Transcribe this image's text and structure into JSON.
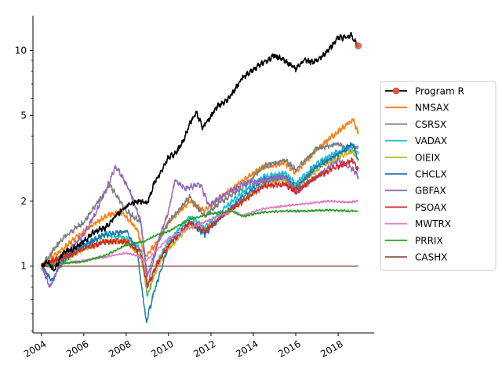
{
  "chart_data": {
    "type": "line",
    "title": "",
    "xlabel": "",
    "ylabel": "",
    "yscale": "log",
    "xlim": [
      2003.6,
      2019.7
    ],
    "ylim": [
      0.49,
      14.5
    ],
    "x_ticks": [
      "2004",
      "2006",
      "2008",
      "2010",
      "2012",
      "2014",
      "2016",
      "2018"
    ],
    "y_ticks": [
      "1",
      "2",
      "5",
      "10"
    ],
    "grid": false,
    "legend_position": "center-right",
    "end_marker": {
      "series": "Program R",
      "x": 2018.95,
      "y": 10.5,
      "color": "#e8574a"
    },
    "series": [
      {
        "name": "Program R",
        "color": "#000000",
        "marker": "circle",
        "x": [
          2004.0,
          2004.3,
          2004.6,
          2005.0,
          2005.5,
          2006.0,
          2006.5,
          2007.0,
          2007.5,
          2008.0,
          2008.5,
          2008.7,
          2009.0,
          2009.3,
          2009.7,
          2010.0,
          2010.3,
          2010.7,
          2011.0,
          2011.3,
          2011.6,
          2011.9,
          2012.3,
          2012.7,
          2013.0,
          2013.5,
          2014.0,
          2014.5,
          2015.0,
          2015.5,
          2016.0,
          2016.4,
          2016.8,
          2017.2,
          2017.6,
          2018.0,
          2018.3,
          2018.6,
          2018.95
        ],
        "y": [
          1.0,
          1.05,
          0.95,
          1.15,
          1.2,
          1.3,
          1.45,
          1.5,
          1.7,
          1.9,
          2.0,
          2.0,
          1.95,
          2.4,
          2.8,
          3.2,
          3.3,
          3.8,
          4.6,
          5.2,
          4.4,
          4.8,
          5.5,
          5.8,
          6.3,
          7.5,
          8.2,
          8.8,
          9.5,
          8.9,
          8.2,
          9.0,
          8.8,
          9.3,
          10.2,
          11.5,
          11.4,
          11.8,
          10.5
        ]
      },
      {
        "name": "NMSAX",
        "color": "#ff7f0e",
        "x": [
          2004.0,
          2005.0,
          2006.0,
          2007.0,
          2007.7,
          2008.5,
          2008.9,
          2009.5,
          2010.0,
          2011.0,
          2011.7,
          2012.5,
          2013.5,
          2014.5,
          2015.5,
          2016.0,
          2017.0,
          2018.0,
          2018.7,
          2018.95
        ],
        "y": [
          1.0,
          1.2,
          1.45,
          1.7,
          1.8,
          1.5,
          1.1,
          1.3,
          1.6,
          2.0,
          1.8,
          2.1,
          2.5,
          2.9,
          3.0,
          2.7,
          3.5,
          4.2,
          4.8,
          4.1
        ]
      },
      {
        "name": "CSRSX",
        "color": "#7f7f7f",
        "x": [
          2004.0,
          2005.0,
          2006.0,
          2007.0,
          2007.2,
          2008.0,
          2008.7,
          2009.0,
          2009.5,
          2010.0,
          2011.0,
          2011.7,
          2012.5,
          2013.5,
          2014.5,
          2015.5,
          2016.0,
          2017.0,
          2018.0,
          2018.7,
          2018.95
        ],
        "y": [
          1.0,
          1.35,
          1.6,
          2.2,
          2.4,
          1.8,
          1.6,
          0.8,
          1.3,
          1.6,
          2.1,
          1.7,
          2.0,
          2.3,
          2.9,
          3.1,
          2.8,
          3.5,
          3.7,
          3.4,
          3.6
        ]
      },
      {
        "name": "VADAX",
        "color": "#17becf",
        "x": [
          2004.0,
          2005.0,
          2006.0,
          2007.0,
          2008.0,
          2008.7,
          2009.0,
          2009.5,
          2010.0,
          2011.0,
          2011.7,
          2012.5,
          2013.5,
          2014.5,
          2015.5,
          2016.0,
          2017.0,
          2018.0,
          2018.7,
          2018.95
        ],
        "y": [
          1.0,
          1.1,
          1.25,
          1.4,
          1.35,
          1.2,
          0.72,
          1.05,
          1.3,
          1.7,
          1.5,
          1.8,
          2.2,
          2.6,
          2.7,
          2.4,
          3.0,
          3.4,
          3.6,
          3.3
        ]
      },
      {
        "name": "OIEIX",
        "color": "#bcbd22",
        "x": [
          2004.0,
          2005.0,
          2006.0,
          2007.0,
          2008.0,
          2008.7,
          2009.0,
          2009.5,
          2010.0,
          2011.0,
          2011.7,
          2012.5,
          2013.5,
          2014.5,
          2015.5,
          2016.0,
          2017.0,
          2018.0,
          2018.7,
          2018.95
        ],
        "y": [
          1.0,
          1.05,
          1.2,
          1.3,
          1.3,
          1.1,
          0.75,
          1.0,
          1.2,
          1.55,
          1.45,
          1.7,
          2.0,
          2.4,
          2.5,
          2.3,
          2.8,
          3.2,
          3.4,
          3.1
        ]
      },
      {
        "name": "CHCLX",
        "color": "#1f77b4",
        "x": [
          2004.0,
          2004.5,
          2005.0,
          2006.0,
          2007.0,
          2008.0,
          2008.5,
          2008.95,
          2009.3,
          2009.7,
          2010.0,
          2011.0,
          2011.7,
          2012.5,
          2013.5,
          2014.5,
          2015.5,
          2016.0,
          2017.0,
          2018.0,
          2018.7,
          2018.95
        ],
        "y": [
          1.0,
          0.85,
          1.05,
          1.25,
          1.4,
          1.45,
          1.2,
          0.55,
          0.75,
          1.0,
          1.25,
          1.6,
          1.4,
          1.7,
          2.1,
          2.5,
          2.6,
          2.3,
          2.9,
          3.3,
          3.7,
          3.1
        ]
      },
      {
        "name": "GBFAX",
        "color": "#9467bd",
        "x": [
          2004.0,
          2004.4,
          2005.0,
          2006.0,
          2006.6,
          2007.0,
          2007.5,
          2007.8,
          2008.2,
          2008.7,
          2009.0,
          2009.5,
          2010.0,
          2010.3,
          2010.8,
          2011.5,
          2011.9,
          2012.5,
          2013.5,
          2014.5,
          2015.5,
          2016.0,
          2017.0,
          2018.0,
          2018.7,
          2018.95
        ],
        "y": [
          1.0,
          0.8,
          1.1,
          1.4,
          1.8,
          2.2,
          2.9,
          2.6,
          2.2,
          1.6,
          0.9,
          1.3,
          1.8,
          2.5,
          2.3,
          2.4,
          1.9,
          2.1,
          2.4,
          2.5,
          2.6,
          2.2,
          2.6,
          3.1,
          2.8,
          2.6
        ]
      },
      {
        "name": "PSOAX",
        "color": "#d62728",
        "x": [
          2004.0,
          2005.0,
          2006.0,
          2007.0,
          2008.0,
          2008.7,
          2009.0,
          2009.5,
          2010.0,
          2011.0,
          2011.7,
          2012.5,
          2013.5,
          2014.5,
          2015.5,
          2016.0,
          2017.0,
          2018.0,
          2018.7,
          2018.95
        ],
        "y": [
          1.0,
          1.1,
          1.2,
          1.3,
          1.3,
          1.15,
          0.8,
          1.05,
          1.25,
          1.6,
          1.45,
          1.7,
          2.0,
          2.35,
          2.4,
          2.2,
          2.6,
          2.9,
          3.1,
          2.8
        ]
      },
      {
        "name": "MWTRX",
        "color": "#e377c2",
        "x": [
          2004.0,
          2005.0,
          2006.0,
          2007.0,
          2008.0,
          2008.5,
          2008.9,
          2009.5,
          2010.0,
          2011.0,
          2012.0,
          2013.0,
          2013.5,
          2014.5,
          2015.5,
          2016.5,
          2017.5,
          2018.5,
          2018.95
        ],
        "y": [
          1.0,
          1.03,
          1.06,
          1.1,
          1.15,
          1.12,
          1.05,
          1.2,
          1.35,
          1.5,
          1.65,
          1.8,
          1.72,
          1.85,
          1.9,
          1.95,
          2.0,
          1.98,
          2.0
        ]
      },
      {
        "name": "PRRIX",
        "color": "#2ca02c",
        "x": [
          2004.0,
          2005.0,
          2006.0,
          2007.0,
          2008.0,
          2008.8,
          2009.5,
          2010.0,
          2011.0,
          2012.0,
          2013.0,
          2013.5,
          2014.5,
          2015.5,
          2016.5,
          2017.5,
          2018.5,
          2018.95
        ],
        "y": [
          1.0,
          1.03,
          1.05,
          1.12,
          1.25,
          1.3,
          1.4,
          1.45,
          1.65,
          1.75,
          1.8,
          1.7,
          1.78,
          1.8,
          1.8,
          1.82,
          1.8,
          1.8
        ]
      },
      {
        "name": "CASHX",
        "color": "#8c564b",
        "x": [
          2004.0,
          2018.95
        ],
        "y": [
          1.0,
          1.0
        ]
      }
    ]
  }
}
